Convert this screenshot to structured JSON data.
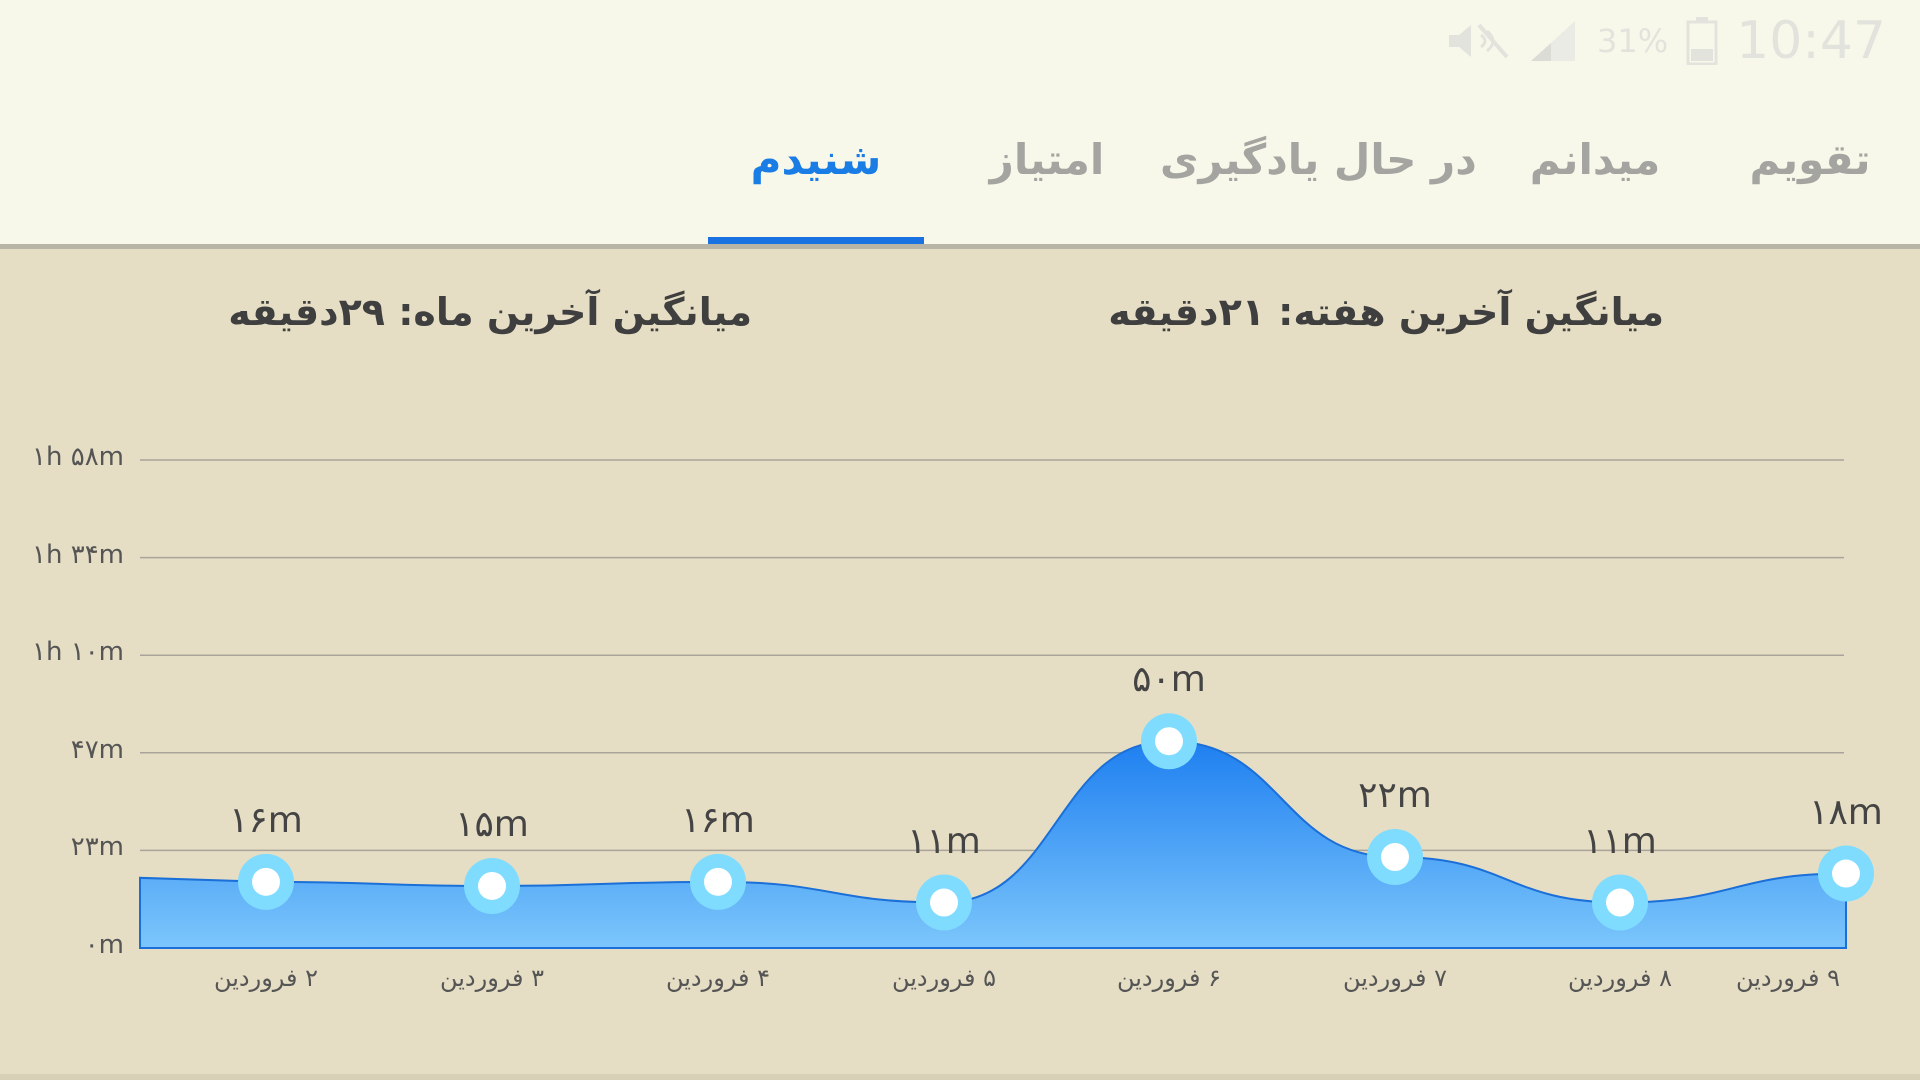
{
  "status_bar": {
    "time": "10:47",
    "battery": "31%",
    "icons": [
      "mute-icon",
      "signal-icon",
      "battery-icon"
    ]
  },
  "tabs": [
    {
      "label": "تقویم",
      "active": false
    },
    {
      "label": "میدانم",
      "active": false
    },
    {
      "label": "در حال یادگیری",
      "active": false
    },
    {
      "label": "امتیاز",
      "active": false
    },
    {
      "label": "شنیدم",
      "active": true
    }
  ],
  "averages": {
    "week": "میانگین آخرین هفته: ۲۱دقیقه",
    "month": "میانگین آخرین ماه: ۲۹دقیقه"
  },
  "colors": {
    "accent": "#1a7de6",
    "area_top": "#1e7ff0",
    "area_bottom": "#7cc6fb",
    "point_ring": "#7fdcff"
  },
  "chart_data": {
    "type": "area",
    "y_tick_labels": [
      "۰m",
      "۲۳m",
      "۴۷m",
      "۱h ۱۰m",
      "۱h ۳۴m",
      "۱h ۵۸m"
    ],
    "ylim": [
      0,
      118
    ],
    "grid": true,
    "x": [
      "۲ فروردین",
      "۳ فروردین",
      "۴ فروردین",
      "۵ فروردین",
      "۶ فروردین",
      "۷ فروردین",
      "۸ فروردین",
      "۹ فروردین"
    ],
    "values": [
      16,
      15,
      16,
      11,
      50,
      22,
      11,
      18
    ],
    "value_labels": [
      "۱۶m",
      "۱۵m",
      "۱۶m",
      "۱۱m",
      "۵۰m",
      "۲۲m",
      "۱۱m",
      "۱۸m"
    ]
  }
}
